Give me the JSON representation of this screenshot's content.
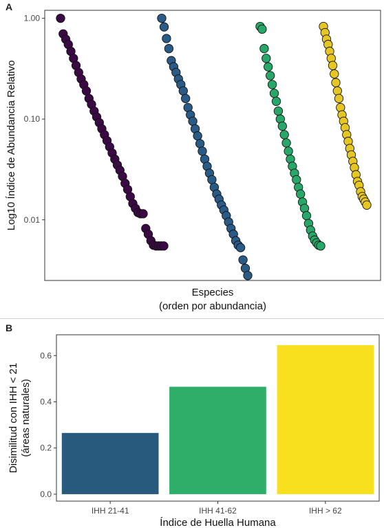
{
  "panelA": {
    "letter": "A",
    "chart_data": {
      "type": "scatter",
      "title": "",
      "xlabel": "Especies",
      "xlabel2": "(orden por abundancia)",
      "ylabel": "Log10 Índice de Abundancia Relativo",
      "yscale": "log10",
      "ylim": [
        0.0025,
        1.2
      ],
      "yticks": [
        1.0,
        0.1,
        0.01
      ],
      "ytick_labels": [
        "1.00",
        "0.10",
        "0.01"
      ],
      "grid": false,
      "series": [
        {
          "color": "#3b0a45",
          "values": [
            1.0,
            0.7,
            0.62,
            0.55,
            0.47,
            0.4,
            0.34,
            0.29,
            0.25,
            0.22,
            0.19,
            0.16,
            0.14,
            0.12,
            0.105,
            0.092,
            0.08,
            0.07,
            0.061,
            0.053,
            0.046,
            0.04,
            0.035,
            0.031,
            0.027,
            0.023,
            0.02,
            0.017,
            0.0145,
            0.013,
            0.0118,
            0.0115,
            0.0115,
            0.0082,
            0.0072,
            0.0062,
            0.0056,
            0.0055,
            0.0055,
            0.0055,
            0.0055
          ]
        },
        {
          "color": "#2a5a86",
          "values": [
            1.0,
            0.82,
            0.63,
            0.5,
            0.38,
            0.33,
            0.29,
            0.25,
            0.22,
            0.19,
            0.16,
            0.13,
            0.11,
            0.095,
            0.08,
            0.068,
            0.057,
            0.048,
            0.04,
            0.034,
            0.029,
            0.025,
            0.021,
            0.018,
            0.016,
            0.014,
            0.0125,
            0.011,
            0.0095,
            0.0082,
            0.0072,
            0.0062,
            0.0056,
            0.0053,
            0.004,
            0.0033,
            0.0028
          ]
        },
        {
          "color": "#27a869",
          "values": [
            0.83,
            0.78,
            0.5,
            0.4,
            0.33,
            0.27,
            0.22,
            0.18,
            0.15,
            0.12,
            0.1,
            0.085,
            0.07,
            0.058,
            0.048,
            0.04,
            0.034,
            0.029,
            0.025,
            0.021,
            0.018,
            0.015,
            0.013,
            0.011,
            0.0092,
            0.0079,
            0.0069,
            0.0063,
            0.0059,
            0.0056,
            0.0055
          ]
        },
        {
          "color": "#e5c623",
          "values": [
            0.83,
            0.72,
            0.62,
            0.55,
            0.47,
            0.4,
            0.34,
            0.28,
            0.23,
            0.19,
            0.16,
            0.13,
            0.11,
            0.095,
            0.082,
            0.07,
            0.06,
            0.051,
            0.044,
            0.038,
            0.033,
            0.028,
            0.024,
            0.022,
            0.019,
            0.017,
            0.016,
            0.015,
            0.014
          ]
        }
      ]
    }
  },
  "panelB": {
    "letter": "B",
    "chart_data": {
      "type": "bar",
      "title": "",
      "categories": [
        "IHH 21-41",
        "IHH 41-62",
        "IHH > 62"
      ],
      "values": [
        0.265,
        0.465,
        0.645
      ],
      "colors": [
        "#285a7e",
        "#2fae69",
        "#f9e01f"
      ],
      "xlabel": "Índice de Huella Humana",
      "ylabel": "Disimilitud con IHH < 21",
      "ylabel2": "(áreas naturales)",
      "ylim": [
        -0.03,
        0.69
      ],
      "yticks": [
        0.0,
        0.2,
        0.4,
        0.6
      ],
      "ytick_labels": [
        "0.0",
        "0.2",
        "0.4",
        "0.6"
      ],
      "grid": false
    }
  }
}
